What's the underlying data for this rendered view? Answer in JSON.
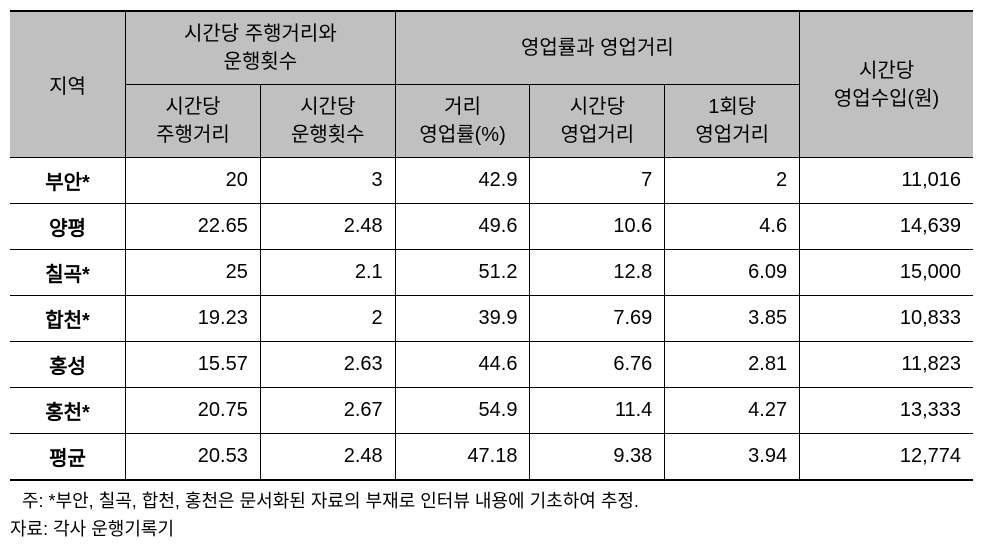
{
  "table": {
    "headers": {
      "region": "지역",
      "group1": "시간당 주행거리와\n운행횟수",
      "group2": "영업률과 영업거리",
      "income": "시간당\n영업수입(원)",
      "sub_distance_per_hour": "시간당\n주행거리",
      "sub_trips_per_hour": "시간당\n운행횟수",
      "sub_distance_rate": "거리\n영업률(%)",
      "sub_biz_distance_per_hour": "시간당\n영업거리",
      "sub_biz_distance_per_trip": "1회당\n영업거리"
    },
    "rows": [
      {
        "region": "부안*",
        "c1": "20",
        "c2": "3",
        "c3": "42.9",
        "c4": "7",
        "c5": "2",
        "c6": "11,016"
      },
      {
        "region": "양평",
        "c1": "22.65",
        "c2": "2.48",
        "c3": "49.6",
        "c4": "10.6",
        "c5": "4.6",
        "c6": "14,639"
      },
      {
        "region": "칠곡*",
        "c1": "25",
        "c2": "2.1",
        "c3": "51.2",
        "c4": "12.8",
        "c5": "6.09",
        "c6": "15,000"
      },
      {
        "region": "합천*",
        "c1": "19.23",
        "c2": "2",
        "c3": "39.9",
        "c4": "7.69",
        "c5": "3.85",
        "c6": "10,833"
      },
      {
        "region": "홍성",
        "c1": "15.57",
        "c2": "2.63",
        "c3": "44.6",
        "c4": "6.76",
        "c5": "2.81",
        "c6": "11,823"
      },
      {
        "region": "홍천*",
        "c1": "20.75",
        "c2": "2.67",
        "c3": "54.9",
        "c4": "11.4",
        "c5": "4.27",
        "c6": "13,333"
      },
      {
        "region": "평균",
        "c1": "20.53",
        "c2": "2.48",
        "c3": "47.18",
        "c4": "9.38",
        "c5": "3.94",
        "c6": "12,774"
      }
    ],
    "column_widths": [
      "12%",
      "14%",
      "14%",
      "14%",
      "14%",
      "14%",
      "18%"
    ]
  },
  "footnote": "주: *부안, 칠곡, 합천, 홍천은 문서화된 자료의 부재로 인터뷰 내용에 기초하여 추정.",
  "source": "자료: 각사 운행기록기"
}
